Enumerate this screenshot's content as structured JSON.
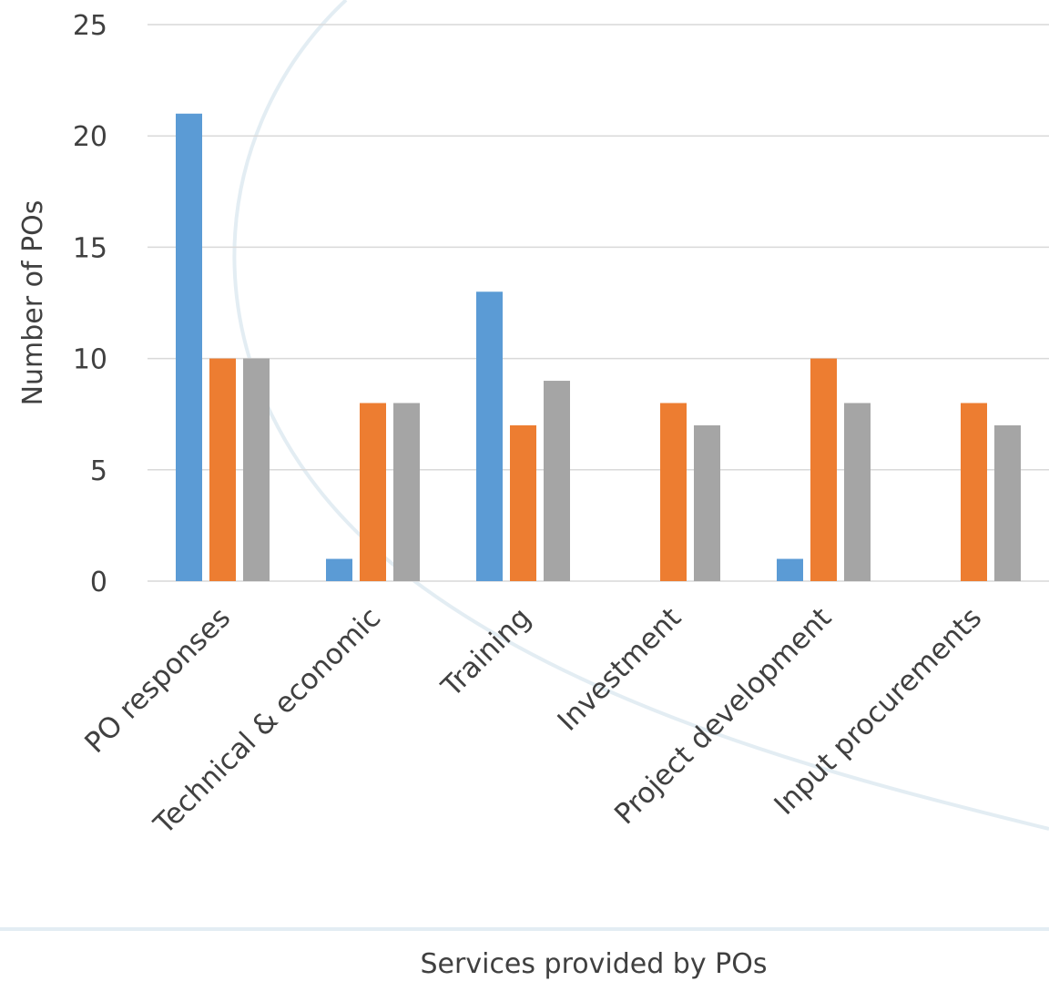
{
  "chart_data": {
    "type": "bar",
    "title": "",
    "xlabel": "Services provided by POs",
    "ylabel": "Number of POs",
    "categories": [
      "PO responses",
      "Technical & economic",
      "Training",
      "Investment",
      "Project development",
      "Input procurements"
    ],
    "series": [
      {
        "values": [
          21,
          1,
          13,
          0,
          1,
          0
        ],
        "color": "#5b9bd5"
      },
      {
        "values": [
          10,
          8,
          7,
          8,
          10,
          8
        ],
        "color": "#ed7d31"
      },
      {
        "values": [
          10,
          8,
          9,
          7,
          8,
          7
        ],
        "color": "#a5a5a5"
      }
    ],
    "ylim": [
      0,
      25
    ],
    "yticks": [
      0,
      5,
      10,
      15,
      20,
      25
    ],
    "grid": true,
    "legend": "none"
  }
}
